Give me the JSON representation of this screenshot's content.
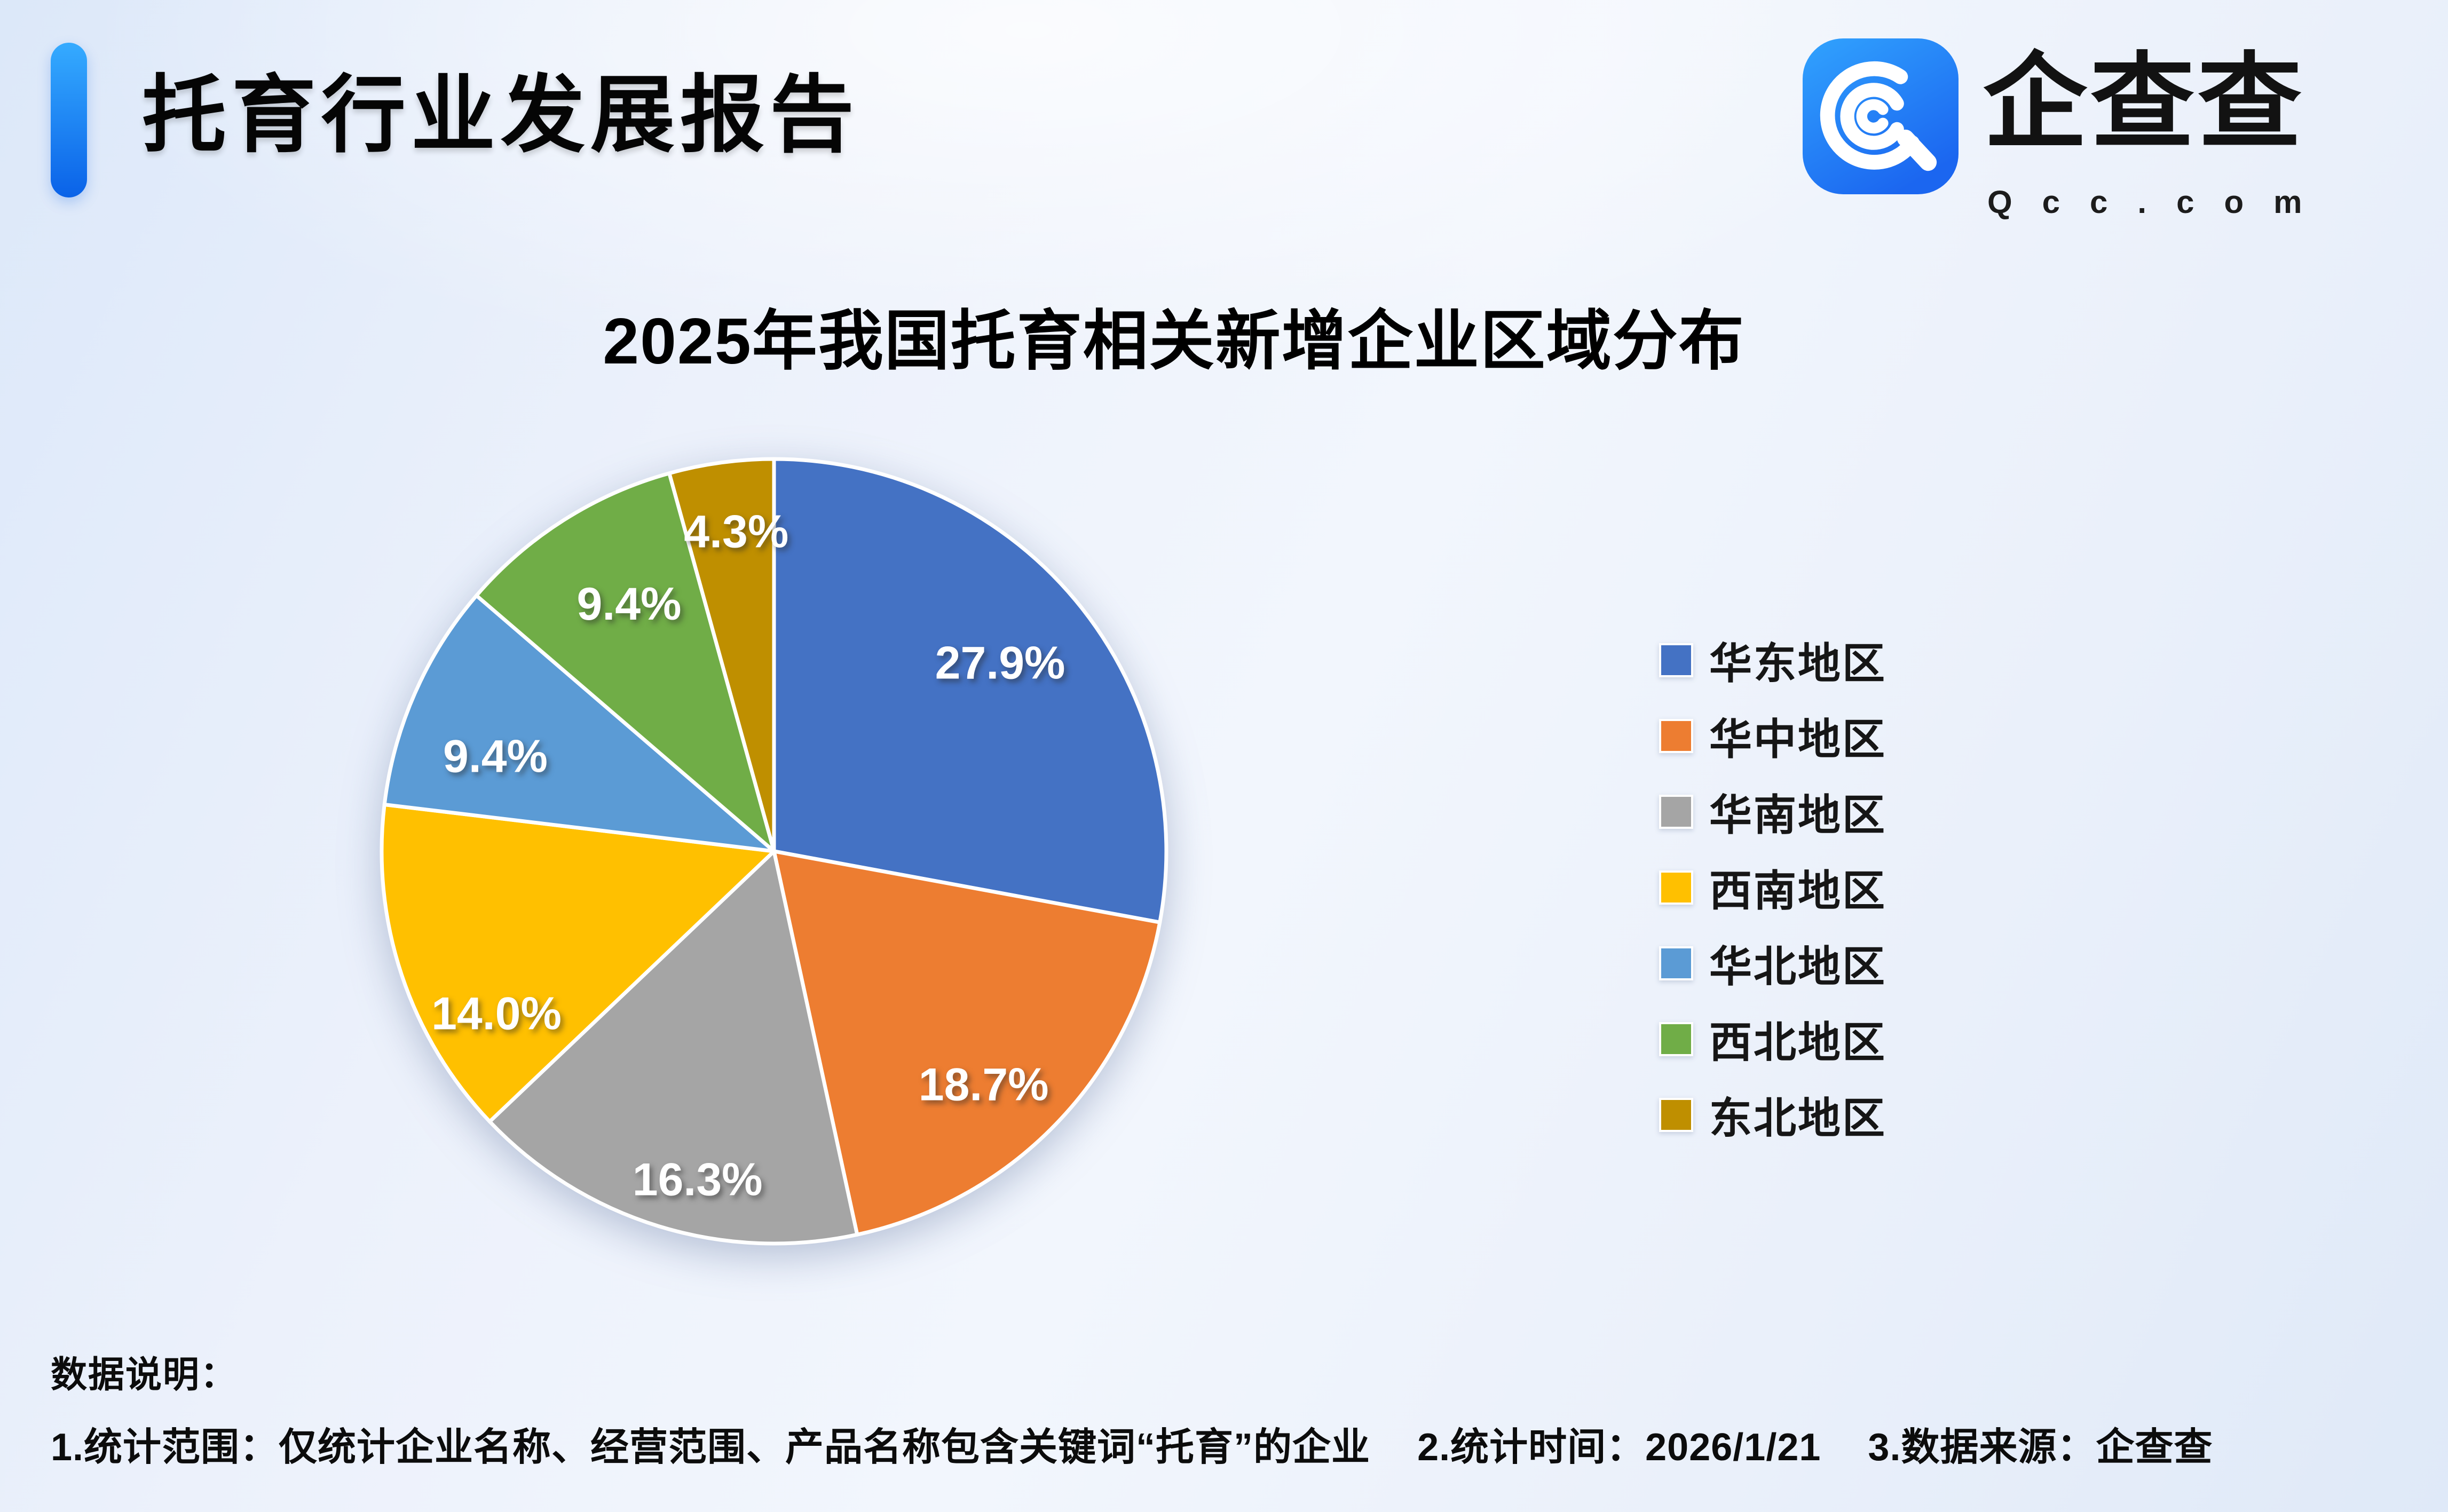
{
  "header": {
    "title": "托育行业发展报告",
    "logo_text": "企查查",
    "logo_domain": "Qcc.com"
  },
  "chart_title": "2025年我国托育相关新增企业区域分布",
  "footer": {
    "heading": "数据说明：",
    "notes": [
      "1.统计范围：仅统计企业名称、经营范围、产品名称包含关键词“托育”的企业",
      "2.统计时间：2026/1/21",
      "3.数据来源：企查查"
    ]
  },
  "chart_data": {
    "type": "pie",
    "title": "2025年我国托育相关新增企业区域分布",
    "unit": "%",
    "start_angle_deg": 0,
    "direction": "clockwise",
    "legend_position": "right",
    "grid": false,
    "categories": [
      "华东地区",
      "华中地区",
      "华南地区",
      "西南地区",
      "华北地区",
      "西北地区",
      "东北地区"
    ],
    "values": [
      27.9,
      18.7,
      16.3,
      14.0,
      9.4,
      9.4,
      4.3
    ],
    "labels": [
      "27.9%",
      "18.7%",
      "16.3%",
      "14.0%",
      "9.4%",
      "9.4%",
      "4.3%"
    ],
    "colors": [
      "#4472C4",
      "#ED7D31",
      "#A5A5A5",
      "#FFC000",
      "#5B9BD5",
      "#70AD47",
      "#BF8F00"
    ],
    "slice_border_color": "#FFFFFF",
    "label_color": "#FFFFFF"
  }
}
